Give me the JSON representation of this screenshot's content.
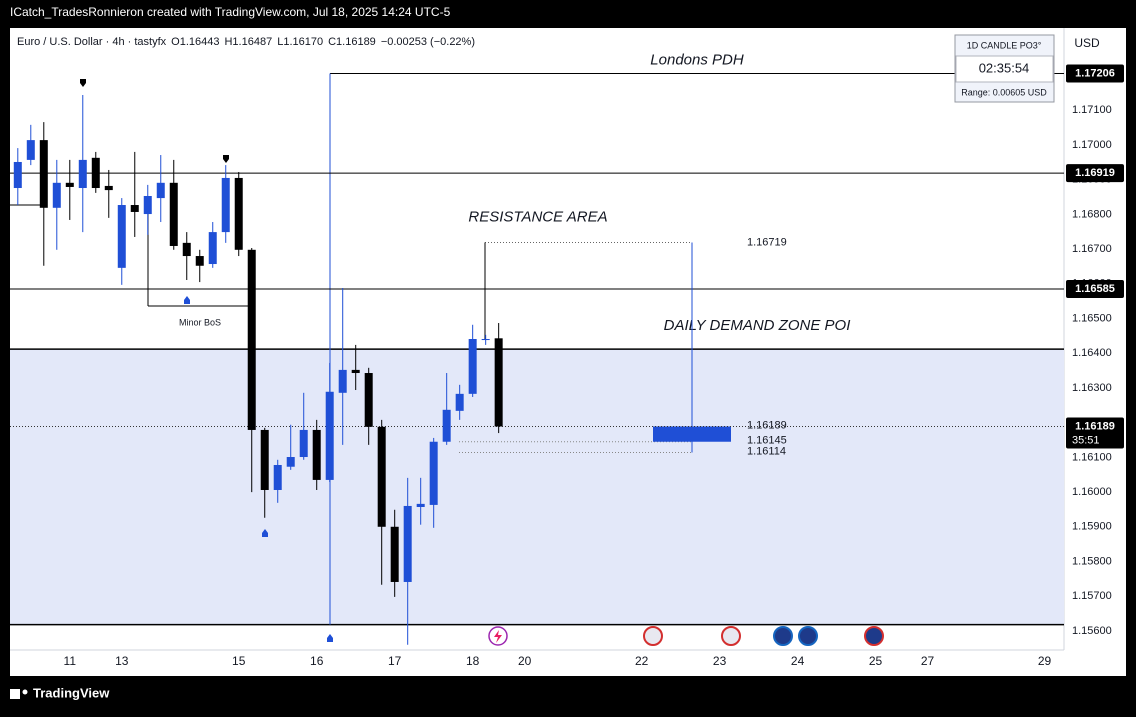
{
  "header": {
    "byline": "ICatch_TradesRonnieron created with TradingView.com, Jul 18, 2025 14:24 UTC-5",
    "brand": "TradingView"
  },
  "widget": {
    "title": "1D CANDLE PO3°",
    "timer": "02:35:54",
    "range": "Range: 0.00605 USD"
  },
  "chart_data": {
    "type": "candlestick",
    "title": "Euro / U.S. Dollar · 4h · tastyfx",
    "ohlc_legend": [
      "O1.16443",
      "H1.16487",
      "L1.16170",
      "C1.16189",
      "−0.00253 (−0.22%)"
    ],
    "currency": "USD",
    "x": [
      -4,
      -3,
      -2,
      -1,
      0,
      1,
      2,
      3,
      4,
      5,
      6,
      7,
      8,
      9,
      10,
      11,
      12,
      13,
      14,
      15,
      16,
      17,
      18,
      19,
      20,
      21,
      22,
      23,
      24,
      25,
      26,
      27,
      28,
      29,
      30,
      31,
      32,
      33
    ],
    "open": [
      1.16876,
      1.16957,
      1.17014,
      1.16819,
      1.16891,
      1.16876,
      1.16963,
      1.16882,
      1.16646,
      1.16827,
      1.16801,
      1.16847,
      1.16891,
      1.16718,
      1.1668,
      1.16657,
      1.16749,
      1.16905,
      1.16698,
      1.16179,
      1.16006,
      1.16073,
      1.16101,
      1.16179,
      1.16035,
      1.16286,
      1.16352,
      1.16343,
      1.16188,
      1.159,
      1.15741,
      1.15957,
      1.15963,
      1.16145,
      1.16234,
      1.16283,
      1.16438,
      1.16443
    ],
    "high": [
      1.16991,
      1.17058,
      1.17066,
      1.16957,
      1.16957,
      1.17144,
      1.1698,
      1.16928,
      1.16847,
      1.1698,
      1.16885,
      1.16971,
      1.16957,
      1.16749,
      1.16698,
      1.16778,
      1.16942,
      1.16922,
      1.16703,
      1.16185,
      1.16093,
      1.16194,
      1.16286,
      1.16208,
      1.16372,
      1.16588,
      1.16424,
      1.16358,
      1.16208,
      1.15949,
      1.16041,
      1.16041,
      1.16156,
      1.16343,
      1.16309,
      1.16482,
      1.16453,
      1.16487
    ],
    "low": [
      1.16827,
      1.16942,
      1.16652,
      1.16698,
      1.16784,
      1.16749,
      1.16862,
      1.1679,
      1.16597,
      1.16735,
      1.16741,
      1.16778,
      1.16698,
      1.16611,
      1.16605,
      1.16646,
      1.16718,
      1.1668,
      1.16,
      1.15926,
      1.15969,
      1.16064,
      1.16093,
      1.16006,
      1.16029,
      1.16136,
      1.16294,
      1.16136,
      1.15733,
      1.15698,
      1.1556,
      1.15906,
      1.15897,
      1.16136,
      1.16208,
      1.16274,
      1.16424,
      1.1617
    ],
    "close": [
      1.16951,
      1.17014,
      1.16819,
      1.16891,
      1.16879,
      1.16957,
      1.16876,
      1.1687,
      1.16827,
      1.16807,
      1.16853,
      1.16891,
      1.16709,
      1.1668,
      1.16652,
      1.16749,
      1.16905,
      1.16698,
      1.16179,
      1.16006,
      1.16078,
      1.16101,
      1.16179,
      1.16035,
      1.16289,
      1.16352,
      1.16343,
      1.16188,
      1.159,
      1.15741,
      1.1596,
      1.15966,
      1.16145,
      1.16237,
      1.16283,
      1.16441,
      1.16441,
      1.16189
    ],
    "up_color": "#1f4fd6",
    "down_color": "#000000",
    "xlim": [
      -4.6,
      76.5
    ],
    "xticks": [
      {
        "value": 0,
        "label": "11"
      },
      {
        "value": 4,
        "label": "13"
      },
      {
        "value": 13,
        "label": "15"
      },
      {
        "value": 19,
        "label": "16"
      },
      {
        "value": 25,
        "label": "17"
      },
      {
        "value": 31,
        "label": "18"
      },
      {
        "value": 35,
        "label": "20"
      },
      {
        "value": 44,
        "label": "22"
      },
      {
        "value": 50,
        "label": "23"
      },
      {
        "value": 56,
        "label": "24"
      },
      {
        "value": 62,
        "label": "25"
      },
      {
        "value": 66,
        "label": "27"
      },
      {
        "value": 75,
        "label": "29"
      }
    ],
    "ylim": [
      1.15545,
      1.17337
    ],
    "yticks": [
      {
        "value": 1.156,
        "label": "1.15600"
      },
      {
        "value": 1.157,
        "label": "1.15700"
      },
      {
        "value": 1.158,
        "label": "1.15800"
      },
      {
        "value": 1.159,
        "label": "1.15900"
      },
      {
        "value": 1.16,
        "label": "1.16000"
      },
      {
        "value": 1.161,
        "label": "1.16100"
      },
      {
        "value": 1.162,
        "label": "1.16200"
      },
      {
        "value": 1.163,
        "label": "1.16300"
      },
      {
        "value": 1.164,
        "label": "1.16400"
      },
      {
        "value": 1.165,
        "label": "1.16500"
      },
      {
        "value": 1.166,
        "label": "1.16600"
      },
      {
        "value": 1.167,
        "label": "1.16700"
      },
      {
        "value": 1.168,
        "label": "1.16800"
      },
      {
        "value": 1.169,
        "label": "1.16900"
      },
      {
        "value": 1.17,
        "label": "1.17000"
      },
      {
        "value": 1.171,
        "label": "1.17100"
      }
    ],
    "grid": false,
    "pdh": {
      "label": "Londons PDH",
      "value": 1.17206
    },
    "levels": [
      1.16919,
      1.16585
    ],
    "demand_zone": {
      "label": "DAILY DEMAND ZONE POI",
      "top": 1.16412,
      "bottom": 1.15618
    },
    "resistance": {
      "label": "RESISTANCE AREA",
      "top": 1.16719
    },
    "target_box": {
      "top": 1.16189,
      "bottom": 1.16145,
      "floor": 1.16114
    },
    "bos_label": "Minor BoS",
    "last_price": {
      "value": 1.16189,
      "countdown": "35:51"
    }
  }
}
